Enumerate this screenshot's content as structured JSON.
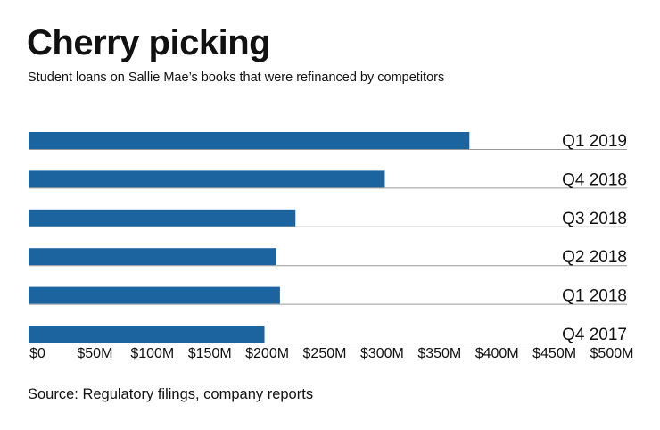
{
  "chart_data": {
    "type": "bar",
    "orientation": "horizontal",
    "title": "Cherry picking",
    "subtitle": "Student loans on Sallie Mae’s books that were refinanced by competitors",
    "categories": [
      "Q1 2019",
      "Q4 2018",
      "Q3 2018",
      "Q2 2018",
      "Q1 2018",
      "Q4 2017"
    ],
    "values": [
      370,
      299,
      224,
      208,
      211,
      198
    ],
    "units": "$M",
    "xlim": [
      0,
      500
    ],
    "xticks": [
      0,
      50,
      100,
      150,
      200,
      250,
      300,
      350,
      400,
      450,
      500
    ],
    "xtick_labels": [
      "$0",
      "$50M",
      "$100M",
      "$150M",
      "$200M",
      "$250M",
      "$300M",
      "$350M",
      "$400M",
      "$450M",
      "$500M"
    ],
    "bar_color": "#1b64a0",
    "grid": false,
    "source": "Source: Regulatory filings, company reports"
  }
}
